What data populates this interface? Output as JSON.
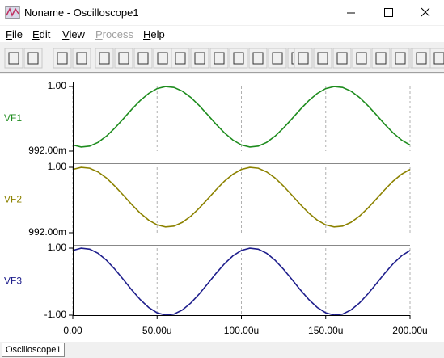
{
  "window": {
    "title": "Noname - Oscilloscope1"
  },
  "menu": [
    "File",
    "Edit",
    "View",
    "Process",
    "Help"
  ],
  "tab": "Oscilloscope1",
  "chart_data": {
    "type": "line",
    "x": [
      0,
      5,
      10,
      15,
      20,
      25,
      30,
      35,
      40,
      45,
      50,
      55,
      60,
      65,
      70,
      75,
      80,
      85,
      90,
      95,
      100,
      105,
      110,
      115,
      120,
      125,
      130,
      135,
      140,
      145,
      150,
      155,
      160,
      165,
      170,
      175,
      180,
      185,
      190,
      195,
      200
    ],
    "xlim": [
      0,
      200
    ],
    "xticks": [
      {
        "value": 0,
        "label": "0.00"
      },
      {
        "value": 50,
        "label": "50.00u"
      },
      {
        "value": 100,
        "label": "100.00u"
      },
      {
        "value": 150,
        "label": "150.00u"
      },
      {
        "value": 200,
        "label": "200.00u"
      }
    ],
    "grid": true,
    "series": [
      {
        "name": "VF1",
        "color": "#1e8c1e",
        "ylim": [
          0.992,
          1
        ],
        "yticks": [
          {
            "value": 1,
            "label": "1.00"
          },
          {
            "value": 0.992,
            "label": "992.00m"
          }
        ],
        "values": [
          0.99276,
          0.99251,
          0.99262,
          0.99308,
          0.99386,
          0.99487,
          0.99601,
          0.99718,
          0.99826,
          0.99914,
          0.99974,
          0.99999,
          0.99988,
          0.99942,
          0.99864,
          0.99763,
          0.99649,
          0.99532,
          0.99424,
          0.99336,
          0.99276,
          0.99251,
          0.99262,
          0.99308,
          0.99386,
          0.99487,
          0.99601,
          0.99718,
          0.99826,
          0.99914,
          0.99974,
          0.99999,
          0.99988,
          0.99942,
          0.99864,
          0.99763,
          0.99649,
          0.99532,
          0.99424,
          0.99336,
          0.99276
        ]
      },
      {
        "name": "VF2",
        "color": "#8c8200",
        "ylim": [
          0.992,
          1
        ],
        "yticks": [
          {
            "value": 1,
            "label": "1.00"
          },
          {
            "value": 0.992,
            "label": "992.00m"
          }
        ],
        "values": [
          0.99974,
          0.99999,
          0.99989,
          0.99943,
          0.99868,
          0.99769,
          0.99658,
          0.99544,
          0.99439,
          0.99354,
          0.99296,
          0.99271,
          0.99281,
          0.99327,
          0.99402,
          0.99501,
          0.99612,
          0.99726,
          0.99831,
          0.99916,
          0.99974,
          0.99999,
          0.99989,
          0.99943,
          0.99868,
          0.99769,
          0.99658,
          0.99544,
          0.99439,
          0.99354,
          0.99296,
          0.99271,
          0.99281,
          0.99327,
          0.99402,
          0.99501,
          0.99612,
          0.99726,
          0.99831,
          0.99916,
          0.99974
        ]
      },
      {
        "name": "VF3",
        "color": "#1e1e8c",
        "ylim": [
          -1,
          1
        ],
        "yticks": [
          {
            "value": 1,
            "label": "1.00"
          },
          {
            "value": -1,
            "label": "-1.00"
          }
        ],
        "values": [
          0.93,
          0.998,
          0.969,
          0.844,
          0.637,
          0.368,
          0.063,
          -0.249,
          -0.536,
          -0.771,
          -0.93,
          -0.998,
          -0.969,
          -0.844,
          -0.637,
          -0.368,
          -0.063,
          0.249,
          0.536,
          0.771,
          0.93,
          0.998,
          0.969,
          0.844,
          0.637,
          0.368,
          0.063,
          -0.249,
          -0.536,
          -0.771,
          -0.93,
          -0.998,
          -0.969,
          -0.844,
          -0.637,
          -0.368,
          -0.063,
          0.249,
          0.536,
          0.771,
          0.93
        ]
      }
    ]
  }
}
